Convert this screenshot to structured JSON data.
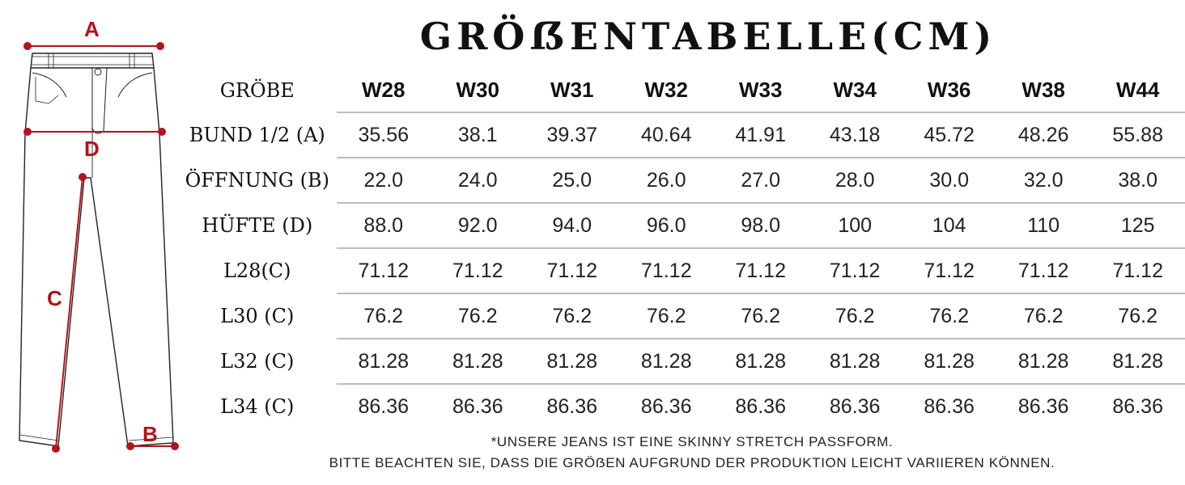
{
  "title": "GRÖẞENTABELLE(CM)",
  "diagram_labels": {
    "a": "A",
    "b": "B",
    "c": "C",
    "d": "D"
  },
  "colors": {
    "accent": "#b5121b",
    "text": "#111111",
    "rule": "#bdbdbd"
  },
  "table": {
    "header_label": "GRÖBE",
    "columns": [
      "W28",
      "W30",
      "W31",
      "W32",
      "W33",
      "W34",
      "W36",
      "W38",
      "W44"
    ],
    "rows": [
      {
        "label": "BUND 1/2 (A)",
        "values": [
          "35.56",
          "38.1",
          "39.37",
          "40.64",
          "41.91",
          "43.18",
          "45.72",
          "48.26",
          "55.88"
        ]
      },
      {
        "label": "ÖFFNUNG (B)",
        "values": [
          "22.0",
          "24.0",
          "25.0",
          "26.0",
          "27.0",
          "28.0",
          "30.0",
          "32.0",
          "38.0"
        ]
      },
      {
        "label": "HÜFTE (D)",
        "values": [
          "88.0",
          "92.0",
          "94.0",
          "96.0",
          "98.0",
          "100",
          "104",
          "110",
          "125"
        ]
      },
      {
        "label": "L28(C)",
        "values": [
          "71.12",
          "71.12",
          "71.12",
          "71.12",
          "71.12",
          "71.12",
          "71.12",
          "71.12",
          "71.12"
        ]
      },
      {
        "label": "L30 (C)",
        "values": [
          "76.2",
          "76.2",
          "76.2",
          "76.2",
          "76.2",
          "76.2",
          "76.2",
          "76.2",
          "76.2"
        ]
      },
      {
        "label": "L32 (C)",
        "values": [
          "81.28",
          "81.28",
          "81.28",
          "81.28",
          "81.28",
          "81.28",
          "81.28",
          "81.28",
          "81.28"
        ]
      },
      {
        "label": "L34 (C)",
        "values": [
          "86.36",
          "86.36",
          "86.36",
          "86.36",
          "86.36",
          "86.36",
          "86.36",
          "86.36",
          "86.36"
        ]
      }
    ]
  },
  "notes": {
    "line1": "*UNSERE JEANS IST EINE SKINNY STRETCH PASSFORM.",
    "line2": "BITTE BEACHTEN SIE, DASS DIE GRÖẞEN AUFGRUND DER PRODUKTION LEICHT VARIIEREN KÖNNEN."
  }
}
